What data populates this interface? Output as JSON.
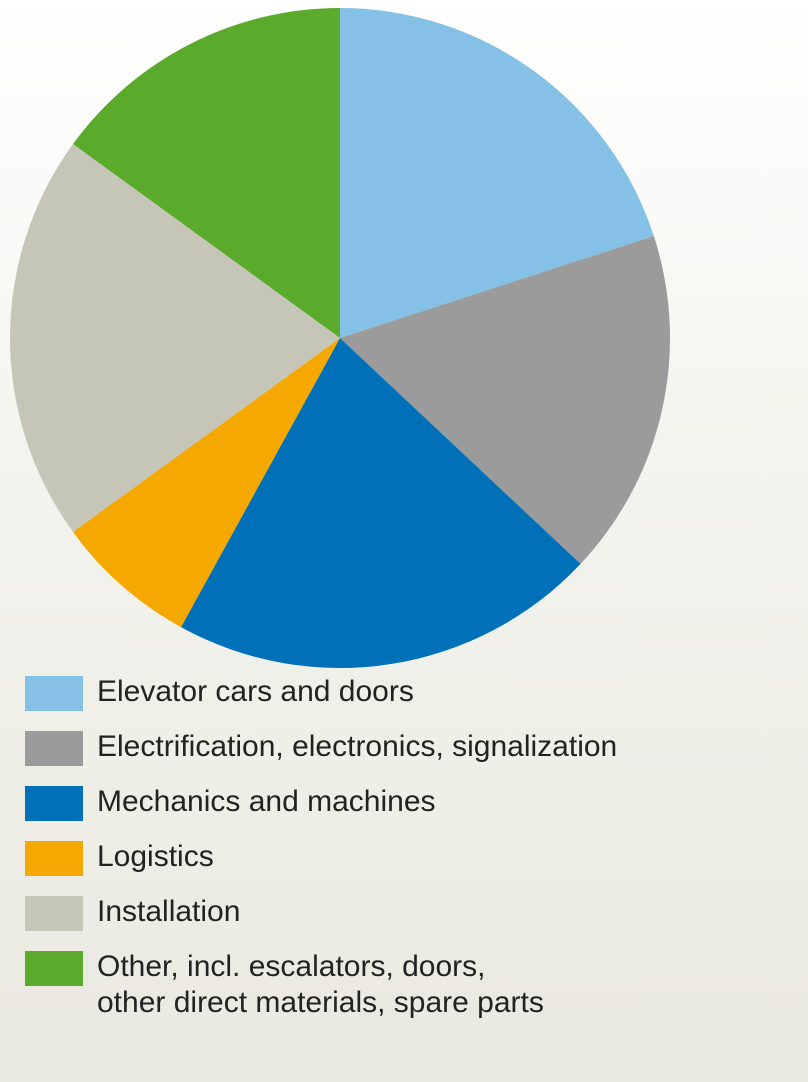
{
  "chart_data": {
    "type": "pie",
    "categories": [
      "Elevator cars and doors",
      "Electrification, electronics, signalization",
      "Mechanics and machines",
      "Logistics",
      "Installation",
      "Other, incl. escalators, doors,\nother direct materials, spare parts"
    ],
    "values": [
      20,
      17,
      21,
      7,
      20,
      15
    ],
    "colors": [
      "#85c1e6",
      "#9b9b9b",
      "#0071b9",
      "#f5a800",
      "#c6c6b8",
      "#5aab2b"
    ]
  }
}
